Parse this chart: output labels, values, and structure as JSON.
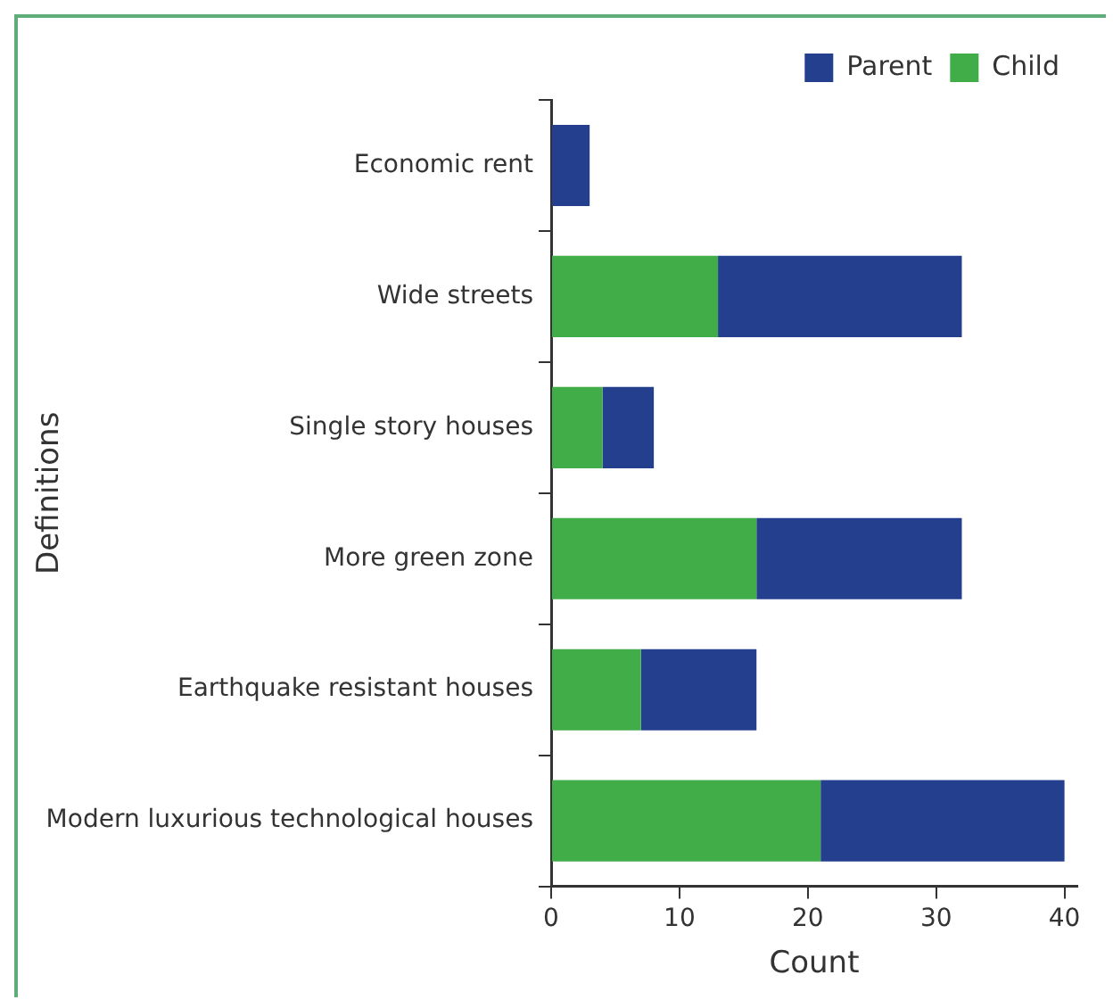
{
  "chart_data": {
    "type": "bar",
    "orientation": "horizontal",
    "stacked": true,
    "xlabel": "Count",
    "ylabel": "Definitions",
    "categories": [
      "Economic rent",
      "Wide streets",
      "Single story houses",
      "More green zone",
      "Earthquake resistant houses",
      "Modern luxurious technological houses"
    ],
    "series": [
      {
        "name": "Child",
        "color": "#41ad49",
        "values": [
          0,
          13,
          4,
          16,
          7,
          21
        ]
      },
      {
        "name": "Parent",
        "color": "#253f8f",
        "values": [
          3,
          19,
          4,
          16,
          9,
          19
        ]
      }
    ],
    "xlim": [
      0,
      41
    ],
    "xticks": [
      0,
      10,
      20,
      30,
      40
    ],
    "grid": false,
    "legend": "top right"
  }
}
